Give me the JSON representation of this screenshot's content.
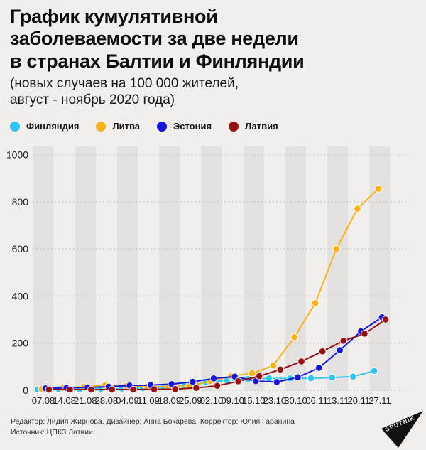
{
  "header": {
    "title_lines": [
      "График кумулятивной",
      "заболеваемости за две недели",
      "в странах Балтии и Финляндии"
    ],
    "subtitle_lines": [
      "(новых случаев на 100 000 жителей,",
      "август - ноябрь 2020 года)"
    ]
  },
  "legend": {
    "items": [
      {
        "label": "Финляндия",
        "color": "#2bc7f2"
      },
      {
        "label": "Литва",
        "color": "#f7b119"
      },
      {
        "label": "Эстония",
        "color": "#1414dd"
      },
      {
        "label": "Латвия",
        "color": "#981111"
      }
    ]
  },
  "chart_data": {
    "type": "line",
    "title": "График кумулятивной заболеваемости за две недели в странах Балтии и Финляндии (новых случаев на 100 000 жителей, август - ноябрь 2020 года)",
    "x_labels": [
      "07.08",
      "14.08",
      "21.08",
      "28.08",
      "04.09",
      "11.09",
      "18.09",
      "25.09",
      "02.10",
      "09.10",
      "16.10",
      "23.10",
      "30.10",
      "06.11",
      "13.11",
      "20.11",
      "27.11"
    ],
    "y_ticks": [
      0,
      200,
      400,
      600,
      800,
      1000
    ],
    "ylim": [
      0,
      1000
    ],
    "grid": "horizontal dotted lines, alternating vertical gray bands on every other date column",
    "legend_position": "top",
    "series": [
      {
        "name": "Финляндия",
        "color": "#2bc7f2",
        "values": [
          3,
          5,
          5,
          6,
          7,
          9,
          12,
          20,
          33,
          42,
          48,
          50,
          50,
          51,
          54,
          58,
          82
        ]
      },
      {
        "name": "Литва",
        "color": "#f7b119",
        "values": [
          6,
          10,
          15,
          20,
          18,
          15,
          15,
          18,
          38,
          60,
          72,
          105,
          225,
          370,
          600,
          770,
          855
        ]
      },
      {
        "name": "Эстония",
        "color": "#1414dd",
        "values": [
          8,
          10,
          12,
          15,
          20,
          22,
          26,
          36,
          50,
          58,
          39,
          35,
          55,
          95,
          170,
          250,
          310
        ]
      },
      {
        "name": "Латвия",
        "color": "#981111",
        "values": [
          3,
          3,
          3,
          3,
          3,
          4,
          5,
          10,
          19,
          38,
          60,
          88,
          122,
          165,
          210,
          240,
          300
        ]
      }
    ]
  },
  "footer": {
    "credits_lines": [
      "Редактор: Лидия Жирнова. Дизайнер: Анна Бокарева. Корректор: Юлия Гаранина",
      "Источник: ЦПКЗ Латвии"
    ],
    "logo_text": "SPUTNIK"
  },
  "colors": {
    "background": "#f1eeec",
    "band": "#e3e1df",
    "grid": "#c7c4c2",
    "text": "#111111"
  }
}
